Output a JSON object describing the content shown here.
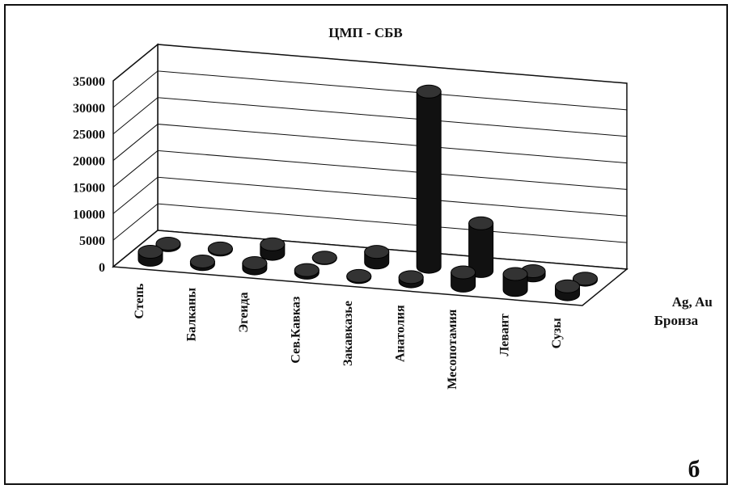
{
  "chart_data": {
    "type": "bar3d",
    "title": "ЦМП - СБВ",
    "categories": [
      "Степь",
      "Балканы",
      "Эгеида",
      "Сев.Кавказ",
      "Закавказье",
      "Анатолия",
      "Месопотамия",
      "Левант",
      "Сузы"
    ],
    "series": [
      {
        "name": "Бронза",
        "color": "#111111",
        "values": [
          1500,
          500,
          1000,
          500,
          200,
          800,
          2500,
          3000,
          1500
        ]
      },
      {
        "name": "Ag, Au",
        "color": "#111111",
        "values": [
          300,
          200,
          1800,
          100,
          2000,
          33000,
          9000,
          800,
          200
        ]
      }
    ],
    "ylim": [
      0,
      35000
    ],
    "yticks": [
      0,
      5000,
      10000,
      15000,
      20000,
      25000,
      30000,
      35000
    ],
    "grid": true,
    "panel_label": "б"
  }
}
